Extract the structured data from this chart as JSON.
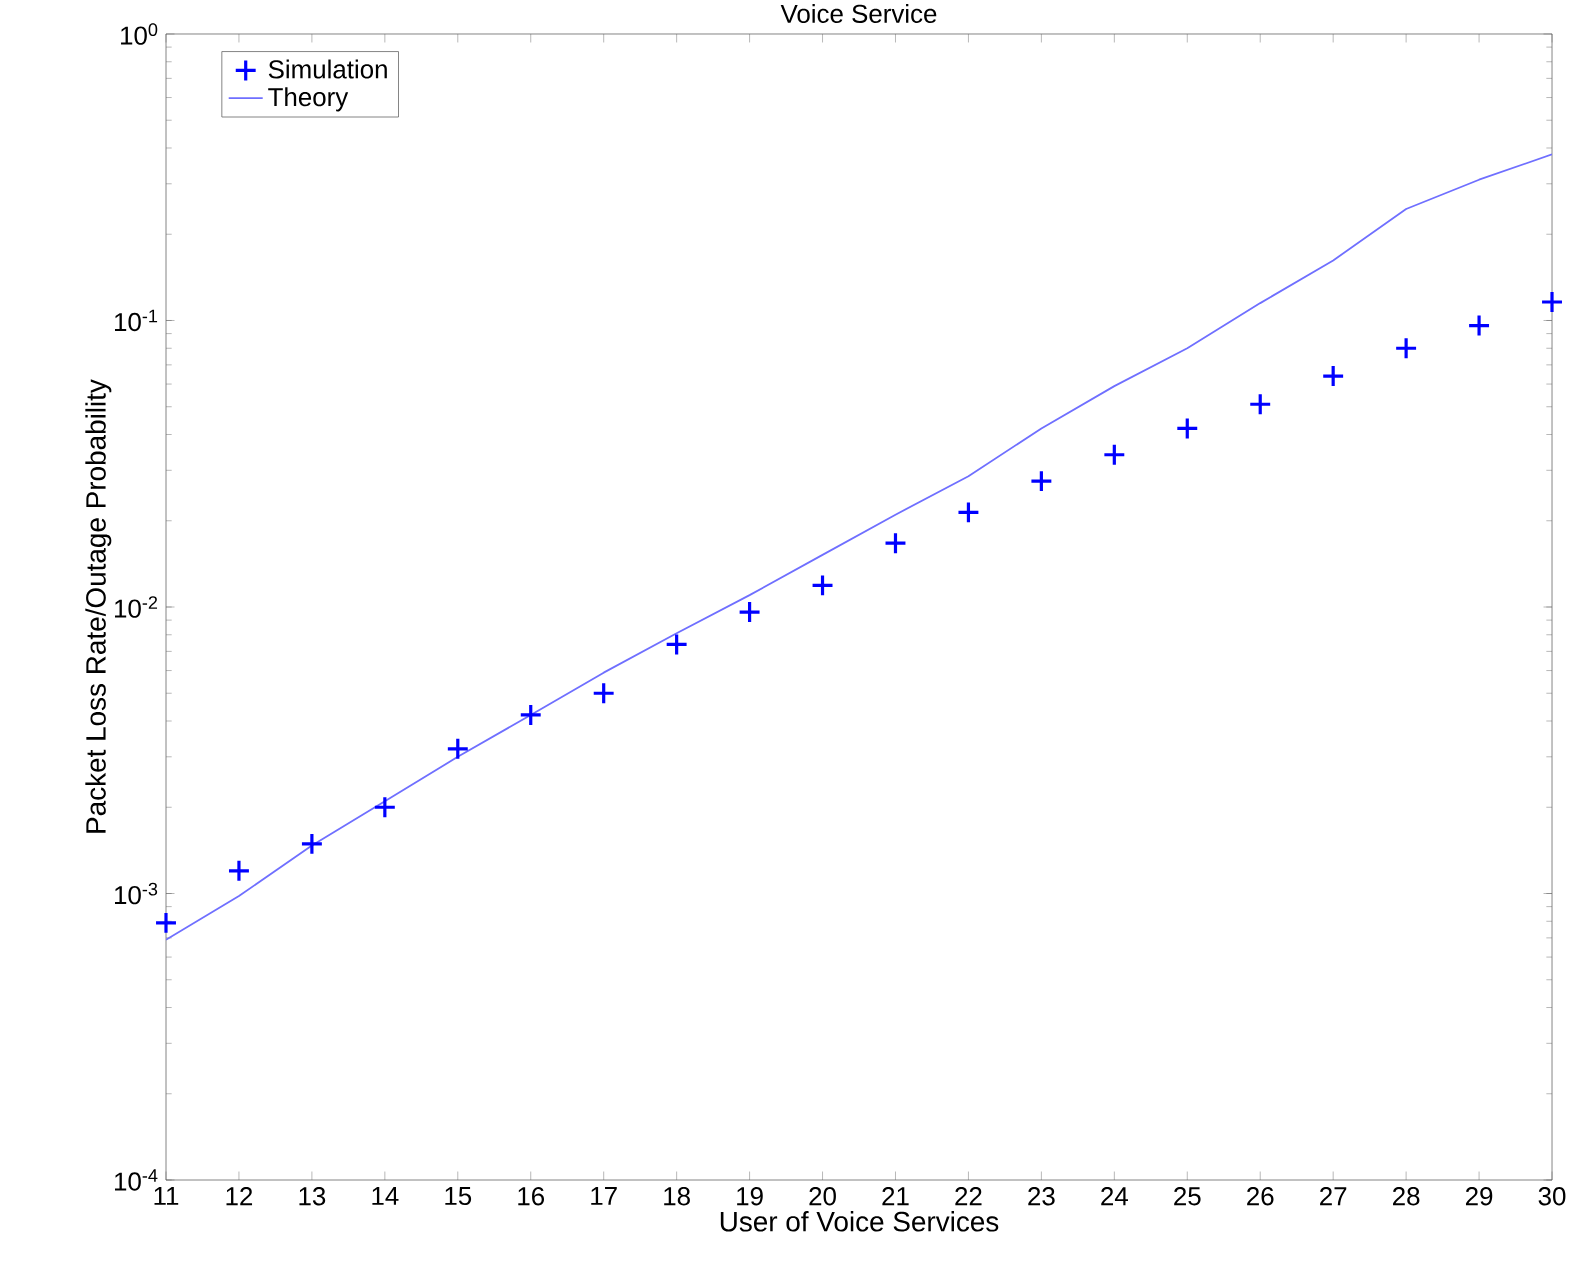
{
  "chart_data": {
    "type": "line",
    "title": "Voice Service",
    "xlabel": "User of Voice Services",
    "ylabel": "Packet Loss Rate/Outage Probability",
    "x": [
      11,
      12,
      13,
      14,
      15,
      16,
      17,
      18,
      19,
      20,
      21,
      22,
      23,
      24,
      25,
      26,
      27,
      28,
      29,
      30
    ],
    "series": [
      {
        "name": "Simulation",
        "type": "scatter",
        "marker": "cross",
        "color": "#0000ff",
        "values": [
          0.00079,
          0.0012,
          0.00149,
          0.002,
          0.0032,
          0.0042,
          0.005,
          0.0074,
          0.0096,
          0.0119,
          0.0167,
          0.0214,
          0.0275,
          0.034,
          0.042,
          0.051,
          0.064,
          0.08,
          0.096,
          0.116
        ]
      },
      {
        "name": "Theory",
        "marker": "none",
        "line_style": "solid",
        "color": "#6f6fff",
        "values": [
          0.00069,
          0.00098,
          0.00147,
          0.0021,
          0.003,
          0.0042,
          0.0059,
          0.0081,
          0.011,
          0.0152,
          0.021,
          0.0286,
          0.042,
          0.059,
          0.08,
          0.115,
          0.162,
          0.245,
          0.31,
          0.38
        ]
      }
    ],
    "log": "y",
    "xlim": [
      11,
      30
    ],
    "ylim": [
      0.0001,
      1
    ],
    "xticks": [
      11,
      12,
      13,
      14,
      15,
      16,
      17,
      18,
      19,
      20,
      21,
      22,
      23,
      24,
      25,
      26,
      27,
      28,
      29,
      30
    ],
    "yticks": [
      {
        "value": 0.0001,
        "label": "10$^{-4}$"
      },
      {
        "value": 0.001,
        "label": "10$^{-3}$"
      },
      {
        "value": 0.01,
        "label": "10$^{-2}$"
      },
      {
        "value": 0.1,
        "label": "10$^{-1}$"
      },
      {
        "value": 1,
        "label": "10$^{0}$"
      }
    ],
    "grid": false,
    "legend": "top left"
  }
}
